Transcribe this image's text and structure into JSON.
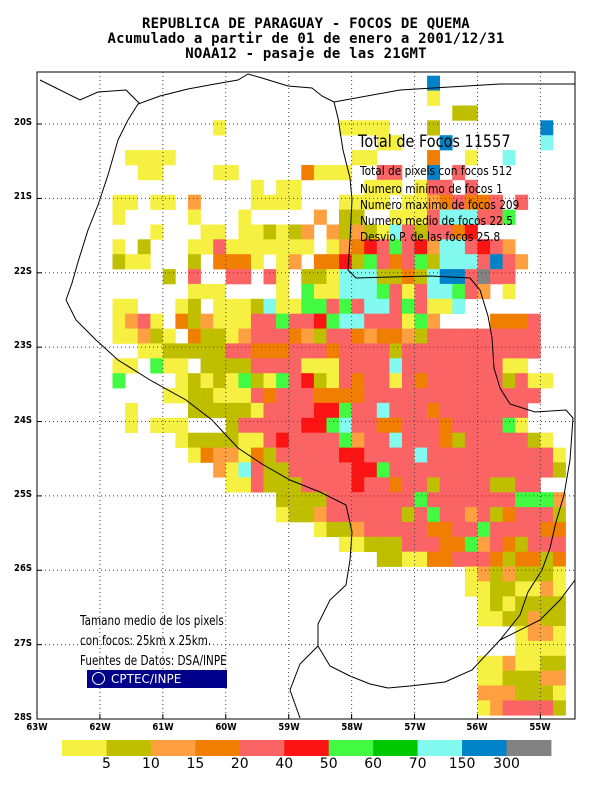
{
  "title": {
    "line1": "REPUBLICA DE PARAGUAY - FOCOS DE QUEMA",
    "line2": "Acumulado a partir de 01 de enero a 2001/12/31",
    "line3": "NOAA12 - pasaje de las 21GMT"
  },
  "stats": {
    "total": "Total de Focos 11557",
    "pixels": "Total de pixels con focos 512",
    "min": "Numero minimo de focos 1",
    "max": "Numero maximo de focos 209",
    "mean": "Numero medio de focos 22.5",
    "std": "Desvio P. de las focos 25.8"
  },
  "notes": {
    "line1": "Tamano medio de los pixels",
    "line2": "con focos: 25km x 25km.",
    "line3": "Fuentes de Datos: DSA/INPE"
  },
  "logo": {
    "label": "CPTEC/INPE"
  },
  "axes": {
    "y_ticks": [
      "20S",
      "21S",
      "22S",
      "23S",
      "24S",
      "25S",
      "26S",
      "27S",
      "28S"
    ],
    "x_ticks": [
      "63W",
      "62W",
      "61W",
      "60W",
      "59W",
      "58W",
      "57W",
      "56W",
      "55W"
    ]
  },
  "legend": {
    "labels": [
      "5",
      "10",
      "15",
      "20",
      "40",
      "50",
      "60",
      "70",
      "150",
      "300"
    ],
    "colors": [
      "#f5f041",
      "#bfbf00",
      "#ffa040",
      "#f07e00",
      "#fa6464",
      "#fa1414",
      "#41fa41",
      "#00c800",
      "#82faf0",
      "#0082c8",
      "#828282"
    ]
  },
  "map": {
    "lat_range": [
      19.3,
      28.0
    ],
    "lon_range": [
      -63.0,
      -54.45
    ],
    "cell_deg": 0.2,
    "grid_origin": {
      "lat": 19.35,
      "lon": -63.0
    },
    "rows": [
      "...............................J.................................",
      "...............................A..................................",
      ".................................BB...............................",
      "..............A.........AAAA...B........J........................",
      "...........................AA...J.......I.........................",
      ".......AAAA..............AA....D..A..I.............................",
      "........AA....AA.....DAAA..EE..J.E.........................",
      ".................A.AA.....AAA.AEE.E......................",
      "......AA.AA.C....AAAA...AAAA.AACDEDDE.E.......................",
      "......A.....A...A.....C.BB..AAAEIIIEEG........................",
      ".........A...AA.AABABC.CBCBAIEBEEDF..........................",
      "......A.B...AAEAAAAAAA.ACDFEGEFCIIEFEC........................",
      "......BAA...B.DDDA.AC.DDFBGEDEGBIIIEJEC.......................",
      "..........B.E..EE.EA.BBAIIIBBDBIJJEKEE.........................",
      "............AAA....A.GAAIIIGEAEIIGEC.A.........................",
      "......AA...AB.AAABIAAGGEGEIIEGEAAI............................",
      "......ACEA.DBCAAAEEGEEFGIIEEEAGC....DDDE.....................",
      "......AACBA.DBBACEEEDCBEEDCDDCBEEEEEEEEE.....................",
      "........AABBBBBEEDDDEEEDEEEEBEEEEEEEEEEE.....................",
      "......AA.GAA.BBBBEEEEAAAEEEEIEEEEEEEEAA.......................",
      "......G....ABABAGBAGEFBAEDEEAEDEEEEEEBEAA......................",
      "..........AABBAAAEDEEEDDDDEEEEEEEEEEEEEE......................",
      ".......A....BBBBBAEEEEFFGEEIEEEDEEEEEEE.......................",
      ".......A.AAA...BEEEEEFFGIEEDDEEEDEEEEGA.......................",
      "...........ABBBBAAEFEEEEGCEEIEEEDBEEEEEBA......................",
      "............ADCCADBEEEEEFFEEEEIEEEEEEEEEEA.....................",
      "..............CAIEBBEEEEEFFGEEEEEEEEEEEEEBE.....................",
      "...............AAEBBBEEEEFEEDEEBEEEEBBEE..EEEEE...................",
      "...................BBBBEEEEEEEGEEEEEEEGGGCEEEBEE...................",
      "...................ABBCEEEEEEBEGEECEBDEEEBEEEEEE..................",
      "......................ABBCEEEEEDDEEGEEEEDDEEBECDAE..................",
      "........................AABBBEEEDDGCEDBEEEEEEEIEEC..................",
      "...........................BBAADDEEEDBDDBDEEAIDDD...................",
      "..................................ACBCBBBAAABAAABCAA..................",
      "..................................AABBAACAAABBAEAAA..................",
      "...................................ABABBBBBBBCBAAAAA..................",
      "...................................AABBCBBAABBEEEAA..................",
      "......................................ACCABBAAAECAA...................",
      "......................................AAAAAABBBBBAA...................",
      "...................................AACAABBBBAAAACAA...................",
      "...................................AABBBCCBBABBBAB....................",
      "...................................CCCBBBAAABBBAAB....................",
      "...................................ACEEEEBBBAAACBB....................",
      "...................................ABEEEECEABBCCAB....................",
      "...................................AAAABACAAAABBAA....................",
      "...................................AAAAABAAAAAAAAD....................",
      "......................................AAAAABAAAAA.....................",
      "........................................AAAAAAAC......................",
      "..........................................AA.........................."
    ]
  }
}
